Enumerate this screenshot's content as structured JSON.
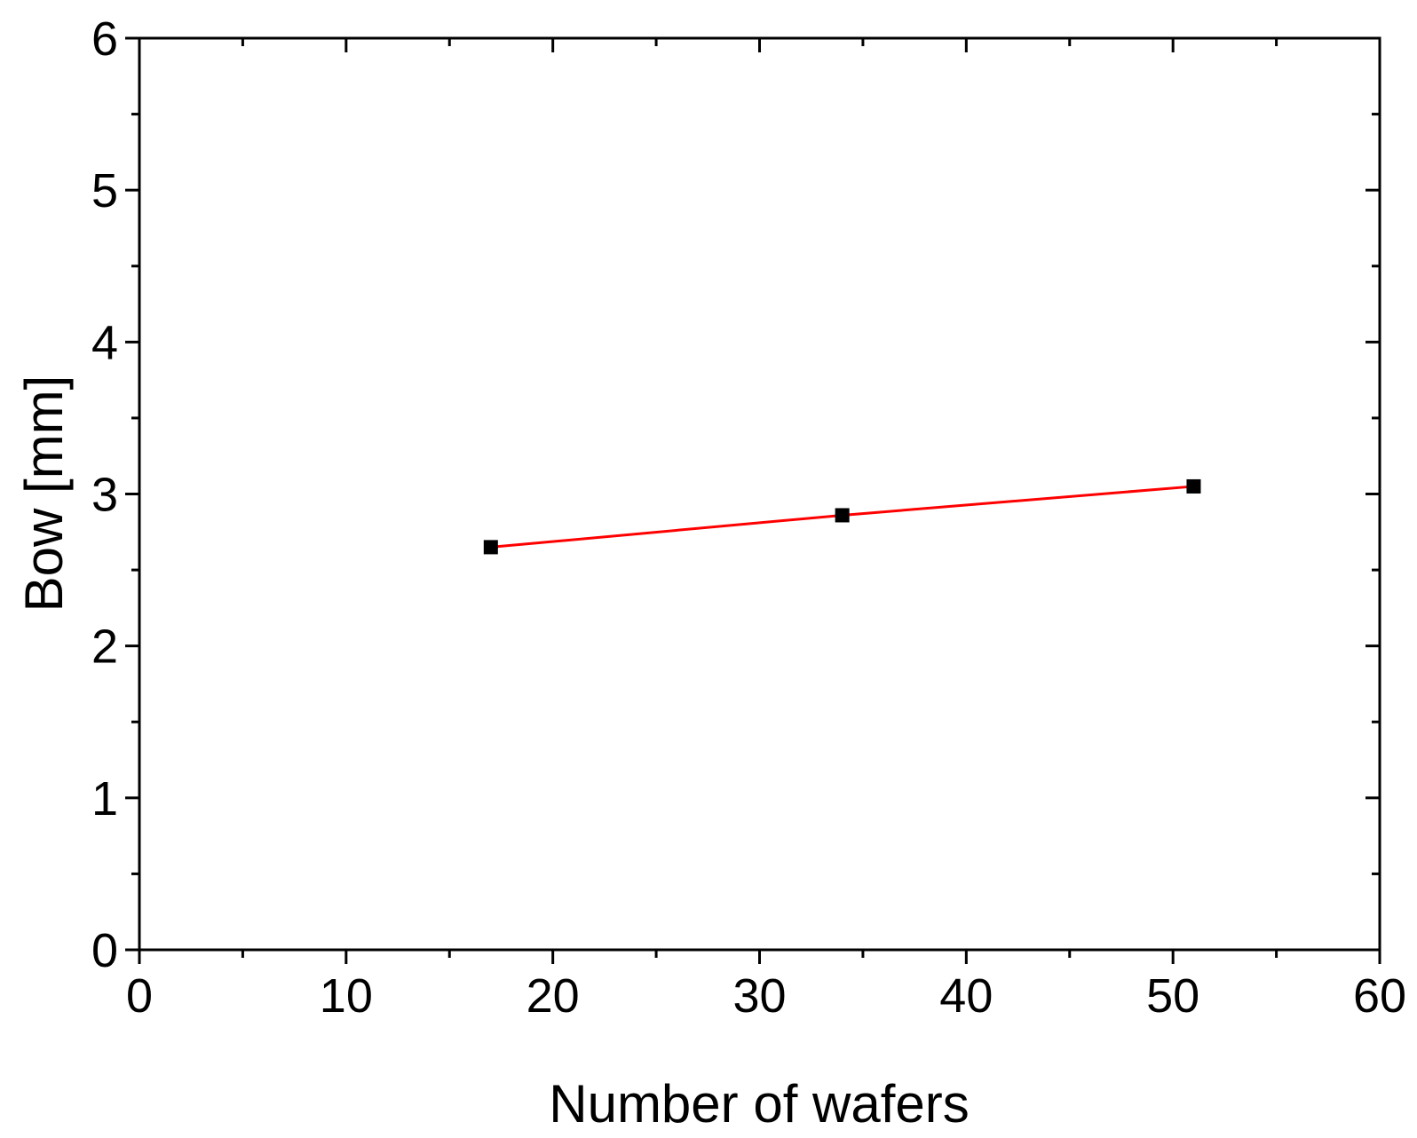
{
  "chart_data": {
    "type": "line",
    "title": "",
    "xlabel": "Number of wafers",
    "ylabel": "Bow [mm]",
    "xlim": [
      0,
      60
    ],
    "ylim": [
      0,
      6
    ],
    "x_ticks": [
      "0",
      "10",
      "20",
      "30",
      "40",
      "50",
      "60"
    ],
    "y_ticks": [
      "0",
      "1",
      "2",
      "3",
      "4",
      "5",
      "6"
    ],
    "grid": false,
    "legend": "none",
    "series": [
      {
        "x": [
          17,
          34,
          51
        ],
        "y": [
          2.65,
          2.86,
          3.05
        ],
        "marker": "square",
        "marker_color": "#000000",
        "line_color": "#ff0000"
      }
    ]
  }
}
